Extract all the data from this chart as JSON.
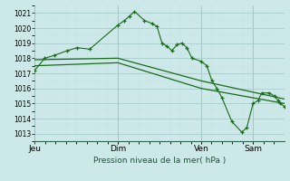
{
  "background_color": "#cce8e8",
  "grid_color": "#aacccc",
  "line_color": "#1a6b1a",
  "title": "Pression niveau de la mer( hPa )",
  "ylabel_ticks": [
    1013,
    1014,
    1015,
    1016,
    1017,
    1018,
    1019,
    1020,
    1021
  ],
  "ylim": [
    1012.5,
    1021.5
  ],
  "xtick_labels": [
    "Jeu",
    "Dim",
    "Ven",
    "Sam"
  ],
  "xtick_positions": [
    0.0,
    0.333,
    0.667,
    0.875
  ],
  "xlim": [
    0.0,
    1.0
  ],
  "series1_x": [
    0.0,
    0.04,
    0.08,
    0.13,
    0.17,
    0.22,
    0.333,
    0.36,
    0.38,
    0.4,
    0.44,
    0.47,
    0.49,
    0.51,
    0.53,
    0.55,
    0.57,
    0.59,
    0.61,
    0.63,
    0.667,
    0.69,
    0.71,
    0.73,
    0.75,
    0.79,
    0.83,
    0.85,
    0.875,
    0.895,
    0.91,
    0.94,
    0.96,
    0.975,
    0.985,
    1.0
  ],
  "series1_y": [
    1017.2,
    1018.0,
    1018.2,
    1018.5,
    1018.7,
    1018.6,
    1020.2,
    1020.5,
    1020.8,
    1021.1,
    1020.5,
    1020.3,
    1020.1,
    1019.0,
    1018.8,
    1018.5,
    1018.9,
    1019.0,
    1018.7,
    1018.0,
    1017.8,
    1017.5,
    1016.5,
    1016.0,
    1015.4,
    1013.8,
    1013.1,
    1013.4,
    1015.0,
    1015.2,
    1015.7,
    1015.7,
    1015.5,
    1015.2,
    1015.0,
    1014.8
  ],
  "series2_x": [
    0.0,
    0.333,
    0.667,
    1.0
  ],
  "series2_y": [
    1017.9,
    1018.0,
    1016.5,
    1015.3
  ],
  "series3_x": [
    0.0,
    0.333,
    0.667,
    1.0
  ],
  "series3_y": [
    1017.5,
    1017.7,
    1016.0,
    1015.0
  ]
}
